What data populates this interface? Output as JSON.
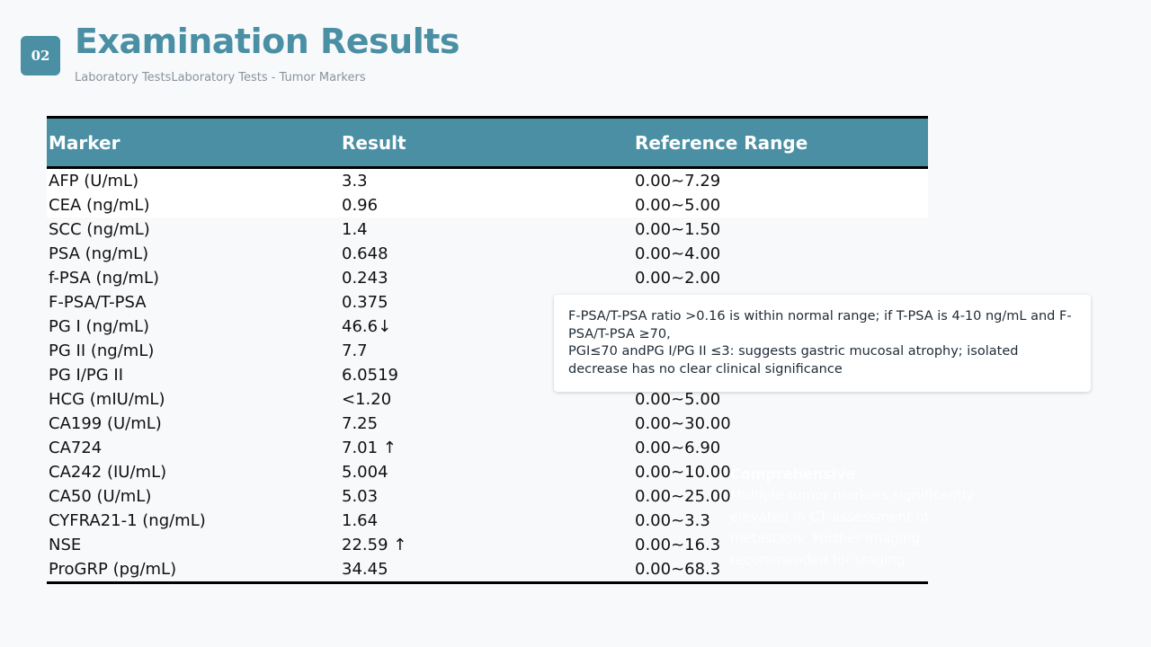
{
  "header": {
    "badge": "02",
    "title": "Examination Results",
    "subtitle": "Laboratory TestsLaboratory Tests - Tumor Markers"
  },
  "table": {
    "columns": [
      "Marker",
      "Result",
      "Reference Range"
    ],
    "rows": [
      {
        "marker": "AFP (U/mL)",
        "result": "3.3",
        "range": "0.00~7.29"
      },
      {
        "marker": "CEA (ng/mL)",
        "result": "0.96",
        "range": "0.00~5.00"
      },
      {
        "marker": "SCC (ng/mL)",
        "result": "1.4",
        "range": "0.00~1.50"
      },
      {
        "marker": "PSA (ng/mL)",
        "result": "0.648",
        "range": "0.00~4.00"
      },
      {
        "marker": "f-PSA (ng/mL)",
        "result": "0.243",
        "range": "0.00~2.00"
      },
      {
        "marker": "F-PSA/T-PSA",
        "result": "0.375",
        "range": ""
      },
      {
        "marker": "PG I (ng/mL)",
        "result": "46.6↓",
        "range": ""
      },
      {
        "marker": "PG II (ng/mL)",
        "result": "7.7",
        "range": ""
      },
      {
        "marker": "PG I/PG II",
        "result": "6.0519",
        "range": ""
      },
      {
        "marker": "HCG (mIU/mL)",
        "result": "<1.20",
        "range": "0.00~5.00"
      },
      {
        "marker": "CA199 (U/mL)",
        "result": "7.25",
        "range": "0.00~30.00"
      },
      {
        "marker": "CA724",
        "result": "7.01 ↑",
        "range": "0.00~6.90"
      },
      {
        "marker": "CA242 (IU/mL)",
        "result": "5.004",
        "range": "0.00~10.00"
      },
      {
        "marker": "CA50 (U/mL)",
        "result": "5.03",
        "range": "0.00~25.00"
      },
      {
        "marker": "CYFRA21-1 (ng/mL)",
        "result": "1.64",
        "range": "0.00~3.3"
      },
      {
        "marker": "NSE",
        "result": "22.59 ↑",
        "range": "0.00~16.3"
      },
      {
        "marker": "ProGRP (pg/mL)",
        "result": "34.45",
        "range": "0.00~68.3"
      }
    ]
  },
  "note": {
    "line1": "F-PSA/T-PSA ratio >0.16 is within normal range; if T-PSA is 4-10 ng/mL and F-PSA/T-PSA ≥70,",
    "line2": "PGI≤70 andPG I/PG II ≤3: suggests gastric mucosal atrophy; isolated decrease has no clear clinical significance"
  },
  "faint_panel": {
    "heading": "Comprehensive",
    "text": "Multiple tumor markers significantly elevated in CT assessment of metastasis; Further imaging recommended for staging"
  }
}
